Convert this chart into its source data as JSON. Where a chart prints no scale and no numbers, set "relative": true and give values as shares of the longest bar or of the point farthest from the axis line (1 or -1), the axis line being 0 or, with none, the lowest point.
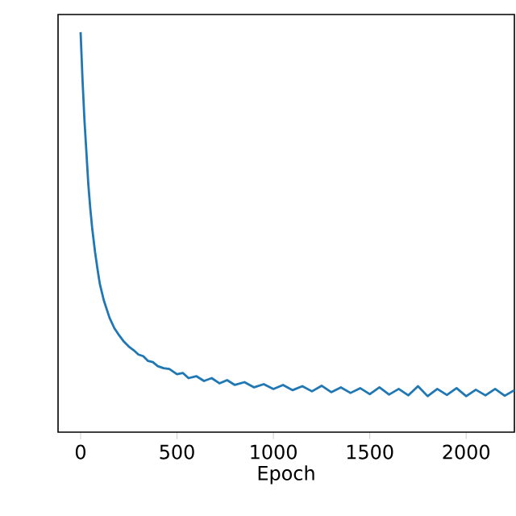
{
  "chart_data": {
    "type": "line",
    "xlabel": "Epoch",
    "relative": true,
    "xlim": [
      -117,
      2250
    ],
    "xticks": [
      0,
      500,
      1000,
      1500,
      2000
    ],
    "grid": false,
    "series": [
      {
        "color": "#1f77b4",
        "x": [
          0,
          10,
          20,
          30,
          40,
          50,
          60,
          75,
          90,
          100,
          120,
          150,
          175,
          200,
          225,
          250,
          275,
          300,
          325,
          350,
          375,
          400,
          430,
          460,
          500,
          530,
          560,
          600,
          640,
          680,
          720,
          760,
          800,
          850,
          900,
          950,
          1000,
          1050,
          1100,
          1150,
          1200,
          1250,
          1300,
          1350,
          1400,
          1450,
          1500,
          1550,
          1600,
          1650,
          1700,
          1750,
          1800,
          1850,
          1900,
          1950,
          2000,
          2050,
          2100,
          2150,
          2200,
          2250
        ],
        "values": [
          1.0,
          0.88,
          0.78,
          0.7,
          0.62,
          0.56,
          0.51,
          0.45,
          0.4,
          0.37,
          0.33,
          0.286,
          0.26,
          0.242,
          0.226,
          0.214,
          0.205,
          0.194,
          0.19,
          0.178,
          0.175,
          0.165,
          0.16,
          0.158,
          0.145,
          0.148,
          0.135,
          0.14,
          0.128,
          0.135,
          0.122,
          0.13,
          0.118,
          0.125,
          0.112,
          0.12,
          0.108,
          0.118,
          0.105,
          0.115,
          0.102,
          0.116,
          0.1,
          0.112,
          0.098,
          0.11,
          0.095,
          0.112,
          0.094,
          0.108,
          0.092,
          0.115,
          0.09,
          0.108,
          0.093,
          0.11,
          0.09,
          0.106,
          0.092,
          0.108,
          0.091,
          0.105
        ]
      }
    ]
  }
}
